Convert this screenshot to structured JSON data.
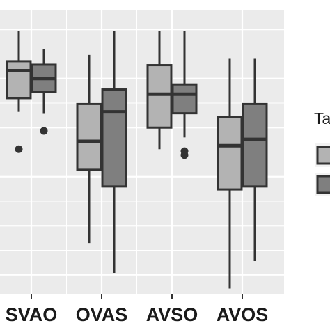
{
  "chart_data": {
    "type": "box",
    "categories": [
      "SVAO",
      "OVAS",
      "AVSO",
      "AVOS"
    ],
    "series": [
      {
        "fill": "#b3b3b3",
        "boxes": [
          {
            "whisker_low": 0.58,
            "q1": 0.65,
            "median": 0.79,
            "q3": 0.838,
            "whisker_high": 0.993,
            "outliers": [
              0.39
            ]
          },
          {
            "whisker_low": -0.088,
            "q1": 0.285,
            "median": 0.43,
            "q3": 0.62,
            "whisker_high": 0.87,
            "outliers": []
          },
          {
            "whisker_low": 0.39,
            "q1": 0.5,
            "median": 0.67,
            "q3": 0.818,
            "whisker_high": 0.993,
            "outliers": []
          },
          {
            "whisker_low": -0.32,
            "q1": 0.185,
            "median": 0.408,
            "q3": 0.553,
            "whisker_high": 0.85,
            "outliers": []
          }
        ]
      },
      {
        "fill": "#7f7f7f",
        "boxes": [
          {
            "whisker_low": 0.57,
            "q1": 0.68,
            "median": 0.75,
            "q3": 0.82,
            "whisker_high": 0.9,
            "outliers": [
              0.483
            ]
          },
          {
            "whisker_low": -0.24,
            "q1": 0.2,
            "median": 0.58,
            "q3": 0.694,
            "whisker_high": 0.993,
            "outliers": []
          },
          {
            "whisker_low": 0.45,
            "q1": 0.573,
            "median": 0.67,
            "q3": 0.72,
            "whisker_high": 0.993,
            "outliers": [
              0.36,
              0.38
            ]
          },
          {
            "whisker_low": -0.18,
            "q1": 0.2,
            "median": 0.44,
            "q3": 0.62,
            "whisker_high": 0.85,
            "outliers": []
          }
        ]
      }
    ],
    "ylim": [
      -0.35,
      1.1
    ],
    "grid": true,
    "legend": {
      "title": "Ta",
      "position": "right"
    },
    "colors": {
      "panel": "#ebebeb",
      "grid": "#ffffff",
      "box_stroke": "#333333",
      "text": "#1a1a1a"
    }
  }
}
